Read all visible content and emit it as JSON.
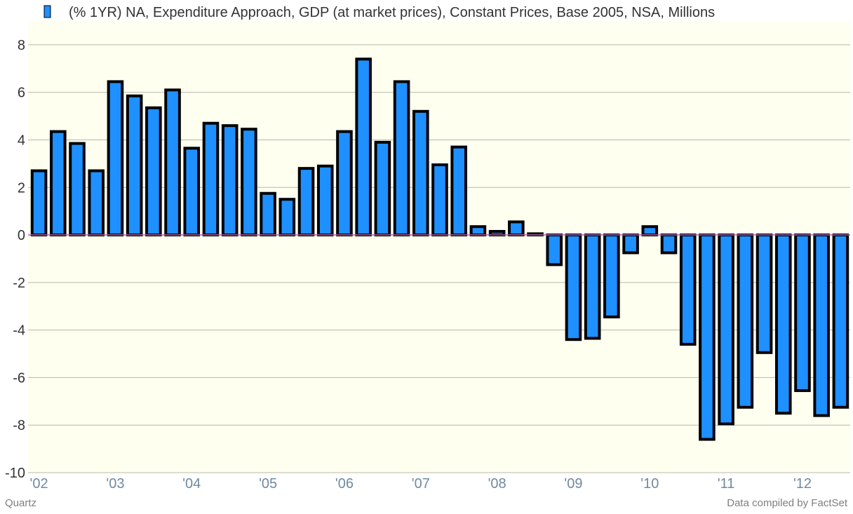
{
  "chart_data": {
    "type": "bar",
    "legend": {
      "label": "(% 1YR) NA, Expenditure Approach, GDP (at market prices), Constant Prices, Base 2005, NSA, Millions",
      "color": "#1e90ff",
      "position": "top"
    },
    "x_tick_labels": [
      "'02",
      "'03",
      "'04",
      "'05",
      "'06",
      "'07",
      "'08",
      "'09",
      "'10",
      "'11",
      "'12"
    ],
    "y_ticks": [
      8,
      6,
      4,
      2,
      0,
      -2,
      -4,
      -6,
      -8,
      -10
    ],
    "ylim": [
      -10,
      9
    ],
    "grid": true,
    "series": [
      {
        "values": [
          2.7,
          4.35,
          3.85,
          2.7,
          6.45,
          5.85,
          5.35,
          6.1,
          3.65,
          4.7,
          4.6,
          4.45,
          1.75,
          1.5,
          2.8,
          2.9,
          4.35,
          7.4,
          3.9,
          6.45,
          5.2,
          2.95,
          3.7,
          0.35,
          0.15,
          0.55,
          0.05,
          -1.25,
          -4.4,
          -4.35,
          -3.45,
          -0.75,
          0.35,
          -0.75,
          -4.6,
          -8.6,
          -7.95,
          -7.25,
          -4.95,
          -7.5,
          -6.55,
          -7.6,
          -7.25
        ]
      }
    ],
    "colors": {
      "bar_fill": "#1e90ff",
      "bar_stroke": "#000000",
      "plot_background": "#fffff0",
      "grid": "#b8b8a8",
      "zero_line": "#b05fb0"
    }
  },
  "footer": {
    "source_left": "Quartz",
    "source_right": "Data compiled by FactSet"
  }
}
